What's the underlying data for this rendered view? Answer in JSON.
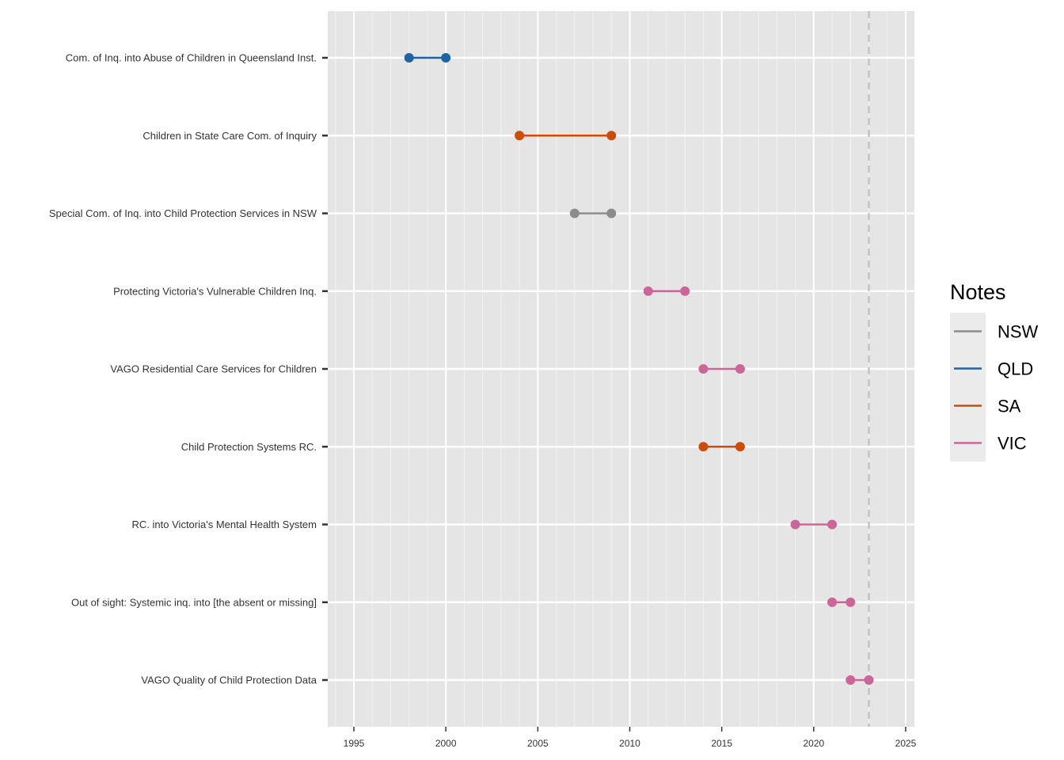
{
  "chart_data": {
    "type": "dumbbell",
    "title": "",
    "xlabel": "",
    "ylabel": "",
    "xlim": [
      1993.5,
      2025.5
    ],
    "x_ticks": [
      1995,
      2000,
      2005,
      2010,
      2015,
      2020,
      2025
    ],
    "reference_line_x": 2023,
    "legend": {
      "title": "Notes",
      "position": "right",
      "entries": [
        {
          "name": "NSW",
          "color": "#8c8c8c"
        },
        {
          "name": "QLD",
          "color": "#1f63a3"
        },
        {
          "name": "SA",
          "color": "#cc4c0a"
        },
        {
          "name": "VIC",
          "color": "#cc6699"
        }
      ]
    },
    "series": [
      {
        "label": "Com. of Inq. into Abuse of Children in Queensland Inst.",
        "group": "QLD",
        "start": 1998,
        "end": 2000
      },
      {
        "label": "Children in State Care Com. of Inquiry",
        "group": "SA",
        "start": 2004,
        "end": 2009
      },
      {
        "label": "Special Com. of Inq. into Child Protection Services in NSW",
        "group": "NSW",
        "start": 2007,
        "end": 2009
      },
      {
        "label": "Protecting Victoria's Vulnerable Children Inq.",
        "group": "VIC",
        "start": 2011,
        "end": 2013
      },
      {
        "label": "VAGO Residential Care Services for Children",
        "group": "VIC",
        "start": 2014,
        "end": 2016
      },
      {
        "label": "Child Protection Systems RC.",
        "group": "SA",
        "start": 2014,
        "end": 2016
      },
      {
        "label": "RC. into Victoria's Mental Health System",
        "group": "VIC",
        "start": 2019,
        "end": 2021
      },
      {
        "label": "Out of sight: Systemic inq. into [the absent or missing]",
        "group": "VIC",
        "start": 2021,
        "end": 2022
      },
      {
        "label": "VAGO Quality of Child Protection Data",
        "group": "VIC",
        "start": 2022,
        "end": 2023
      }
    ]
  }
}
